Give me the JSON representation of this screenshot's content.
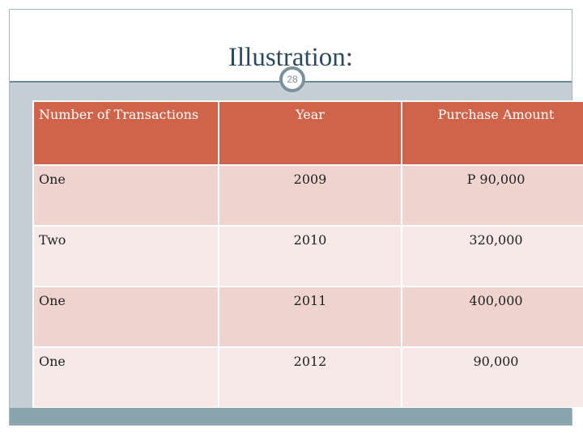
{
  "slide": {
    "title": "Illustration:",
    "number": "28"
  },
  "table": {
    "headers": [
      "Number of Transactions",
      "Year",
      "Purchase Amount"
    ],
    "rows": [
      [
        "One",
        "2009",
        "P 90,000"
      ],
      [
        "Two",
        "2010",
        "320,000"
      ],
      [
        "One",
        "2011",
        "400,000"
      ],
      [
        "One",
        "2012",
        "90,000"
      ]
    ]
  },
  "colors": {
    "header": "#d0644a",
    "row_odd": "#efd3cf",
    "row_even": "#f6e9e7",
    "frame": "#c5d0d6",
    "title_text": "#2b4a5c",
    "footer_bar": "#8aa6ac"
  }
}
